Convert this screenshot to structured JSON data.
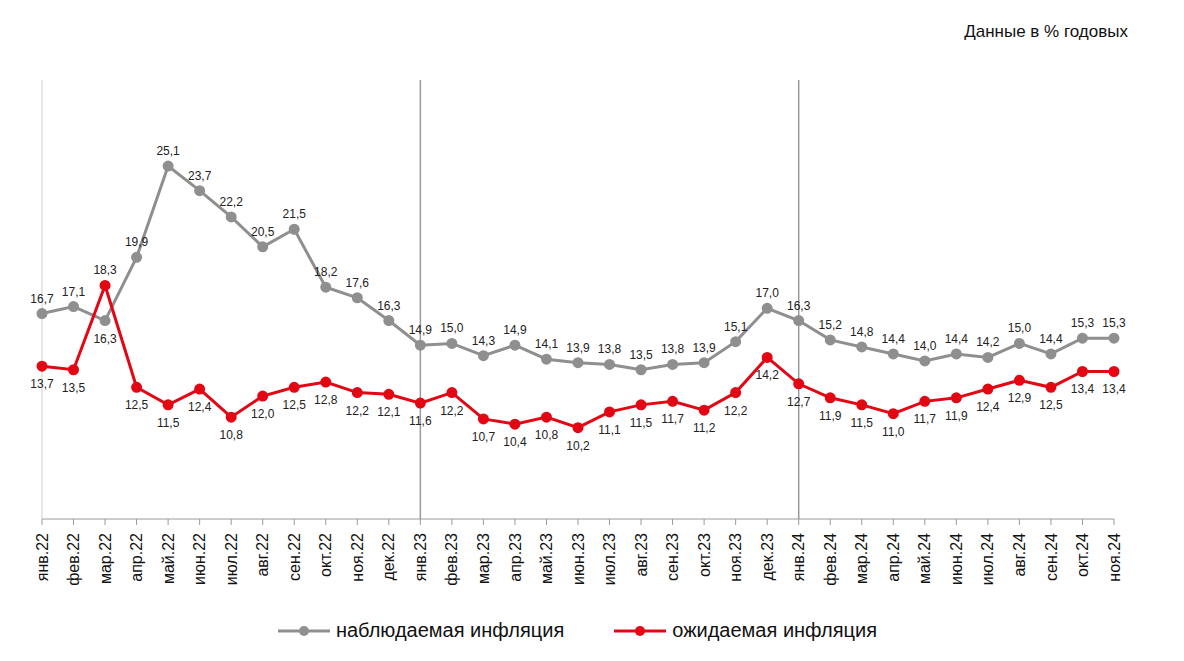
{
  "chart_data": {
    "type": "line",
    "subtitle": "Данные в % годовых",
    "categories": [
      "янв.22",
      "фев.22",
      "мар.22",
      "апр.22",
      "май.22",
      "июн.22",
      "июл.22",
      "авг.22",
      "сен.22",
      "окт.22",
      "ноя.22",
      "дек.22",
      "янв.23",
      "фев.23",
      "мар.23",
      "апр.23",
      "май.23",
      "июн.23",
      "июл.23",
      "авг.23",
      "сен.23",
      "окт.23",
      "ноя.23",
      "дек.23",
      "янв.24",
      "фев.24",
      "мар.24",
      "апр.24",
      "май.24",
      "июн.24",
      "июл.24",
      "авг.24",
      "сен.24",
      "окт.24",
      "ноя.24"
    ],
    "series": [
      {
        "name": "наблюдаемая  инфляция",
        "color": "#8f8f8f",
        "marker": "circle",
        "values": [
          16.7,
          17.1,
          16.3,
          19.9,
          25.1,
          23.7,
          22.2,
          20.5,
          21.5,
          18.2,
          17.6,
          16.3,
          14.9,
          15.0,
          14.3,
          14.9,
          14.1,
          13.9,
          13.8,
          13.5,
          13.8,
          13.9,
          15.1,
          17.0,
          16.3,
          15.2,
          14.8,
          14.4,
          14.0,
          14.4,
          14.2,
          15.0,
          14.4,
          15.3,
          15.3
        ],
        "value_labels": [
          "16,7",
          "17,1",
          "16,3",
          "19,9",
          "25,1",
          "23,7",
          "22,2",
          "20,5",
          "21,5",
          "18,2",
          "17,6",
          "16,3",
          "14,9",
          "15,0",
          "14,3",
          "14,9",
          "14,1",
          "13,9",
          "13,8",
          "13,5",
          "13,8",
          "13,9",
          "15,1",
          "17,0",
          "16,3",
          "15,2",
          "14,8",
          "14,4",
          "14,0",
          "14,4",
          "14,2",
          "15,0",
          "14,4",
          "15,3",
          "15,3"
        ]
      },
      {
        "name": "ожидаемая  инфляция",
        "color": "#e30613",
        "marker": "circle",
        "values": [
          13.7,
          13.5,
          18.3,
          12.5,
          11.5,
          12.4,
          10.8,
          12.0,
          12.5,
          12.8,
          12.2,
          12.1,
          11.6,
          12.2,
          10.7,
          10.4,
          10.8,
          10.2,
          11.1,
          11.5,
          11.7,
          11.2,
          12.2,
          14.2,
          12.7,
          11.9,
          11.5,
          11.0,
          11.7,
          11.9,
          12.4,
          12.9,
          12.5,
          13.4,
          13.4
        ],
        "value_labels": [
          "13,7",
          "13,5",
          "18,3",
          "12,5",
          "11,5",
          "12,4",
          "10,8",
          "12,0",
          "12,5",
          "12,8",
          "12,2",
          "12,1",
          "11,6",
          "12,2",
          "10,7",
          "10,4",
          "10,8",
          "10,2",
          "11,1",
          "11,5",
          "11,7",
          "11,2",
          "12,2",
          "14,2",
          "12,7",
          "11,9",
          "11,5",
          "11,0",
          "11,7",
          "11,9",
          "12,4",
          "12,9",
          "12,5",
          "13,4",
          "13,4"
        ]
      }
    ],
    "ylim": [
      5,
      30
    ],
    "grid": false,
    "legend": "bottom",
    "data_labels": true,
    "tick_labels": "x"
  }
}
